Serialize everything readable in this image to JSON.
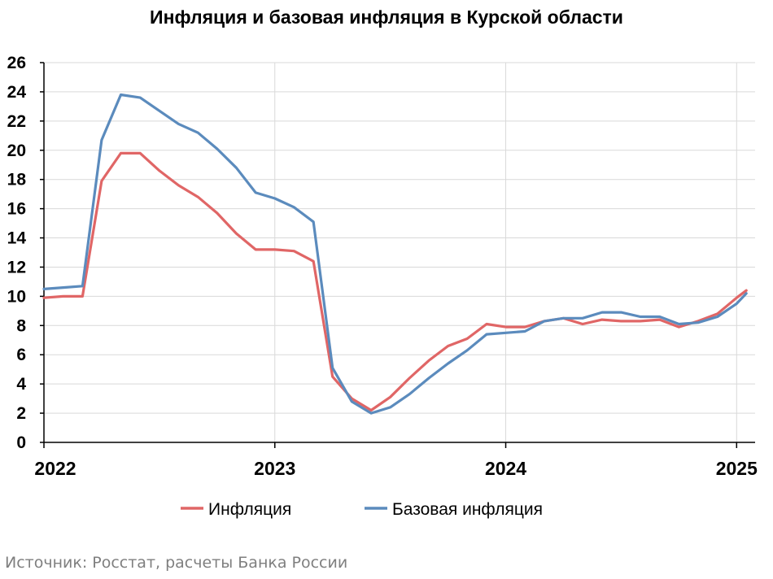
{
  "chart_data": {
    "type": "line",
    "title": "Инфляция и базовая инфляция в Курской области",
    "ylim": [
      0,
      26
    ],
    "yticks": [
      0,
      2,
      4,
      6,
      8,
      10,
      12,
      14,
      16,
      18,
      20,
      22,
      24,
      26
    ],
    "xlim": [
      2022.0,
      2025.08
    ],
    "xticks": [
      "2022",
      "2023",
      "2024",
      "2025"
    ],
    "grid": true,
    "legend_position": "bottom",
    "x": [
      2022.0,
      2022.083,
      2022.167,
      2022.25,
      2022.333,
      2022.417,
      2022.5,
      2022.583,
      2022.667,
      2022.75,
      2022.833,
      2022.917,
      2023.0,
      2023.083,
      2023.167,
      2023.25,
      2023.333,
      2023.417,
      2023.5,
      2023.583,
      2023.667,
      2023.75,
      2023.833,
      2023.917,
      2024.0,
      2024.083,
      2024.167,
      2024.25,
      2024.333,
      2024.417,
      2024.5,
      2024.583,
      2024.667,
      2024.75,
      2024.833,
      2024.917,
      2025.0,
      2025.042
    ],
    "series": [
      {
        "name": "Инфляция",
        "color": "#e06666",
        "values": [
          9.9,
          10.0,
          10.0,
          17.9,
          19.8,
          19.8,
          18.6,
          17.6,
          16.8,
          15.7,
          14.3,
          13.2,
          13.2,
          13.1,
          12.4,
          4.5,
          3.0,
          2.2,
          3.1,
          4.4,
          5.6,
          6.6,
          7.1,
          8.1,
          7.9,
          7.9,
          8.3,
          8.5,
          8.1,
          8.4,
          8.3,
          8.3,
          8.4,
          7.9,
          8.3,
          8.8,
          9.9,
          10.4
        ]
      },
      {
        "name": "Базовая инфляция",
        "color": "#5b8bbd",
        "values": [
          10.5,
          10.6,
          10.7,
          20.7,
          23.8,
          23.6,
          22.7,
          21.8,
          21.2,
          20.1,
          18.8,
          17.1,
          16.7,
          16.1,
          15.1,
          5.1,
          2.8,
          2.0,
          2.4,
          3.3,
          4.4,
          5.4,
          6.3,
          7.4,
          7.5,
          7.6,
          8.3,
          8.5,
          8.5,
          8.9,
          8.9,
          8.6,
          8.6,
          8.1,
          8.2,
          8.6,
          9.5,
          10.2
        ]
      }
    ]
  },
  "source": "Источник: Росстат, расчеты Банка России"
}
